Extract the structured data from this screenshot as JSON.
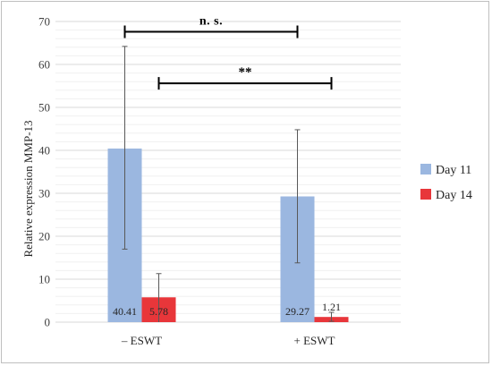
{
  "chart_data": {
    "type": "bar",
    "title": "",
    "xlabel": "",
    "ylabel": "Relative expression MMP-13",
    "ylim": [
      0,
      70
    ],
    "yticks": [
      0,
      10,
      20,
      30,
      40,
      50,
      60,
      70
    ],
    "minor_grid_step": 2,
    "grid": true,
    "legend_position": "right",
    "categories": [
      "– ESWT",
      "+ ESWT"
    ],
    "series": [
      {
        "name": "Day 11",
        "color": "#9bb7e0",
        "values": [
          40.41,
          29.27
        ],
        "labels": [
          "40.41",
          "29.27"
        ],
        "error_low": [
          17,
          13.8
        ],
        "error_high": [
          64.2,
          44.8
        ]
      },
      {
        "name": "Day 14",
        "color": "#e8363a",
        "values": [
          5.78,
          1.21
        ],
        "labels": [
          "5.78",
          "1.21"
        ],
        "error_low": [
          0,
          0.2
        ],
        "error_high": [
          11.3,
          2.3
        ]
      }
    ],
    "annotations": [
      {
        "text": "n. s.",
        "y": 67.6,
        "from": "– ESWT / Day 11",
        "to": "+ ESWT / Day 11"
      },
      {
        "text": "**",
        "y": 55.6,
        "from": "– ESWT / Day 14",
        "to": "+ ESWT / Day 14"
      }
    ]
  }
}
